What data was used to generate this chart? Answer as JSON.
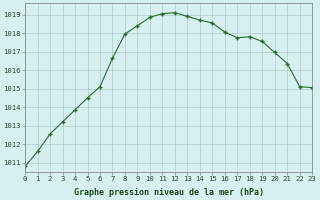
{
  "x": [
    0,
    1,
    2,
    3,
    4,
    5,
    6,
    7,
    8,
    9,
    10,
    11,
    12,
    13,
    14,
    15,
    16,
    17,
    18,
    19,
    20,
    21,
    22,
    23
  ],
  "y": [
    1010.8,
    1011.6,
    1012.55,
    1013.2,
    1013.85,
    1014.5,
    1015.1,
    1016.65,
    1017.95,
    1018.4,
    1018.85,
    1019.05,
    1019.1,
    1018.9,
    1018.7,
    1018.55,
    1018.05,
    1017.75,
    1017.8,
    1017.55,
    1016.95,
    1016.35,
    1015.1,
    1015.05
  ],
  "line_color": "#2d6a2d",
  "marker": "+",
  "bg_color": "#d6f0f0",
  "grid_color": "#b0c8c8",
  "xlabel": "Graphe pression niveau de la mer (hPa)",
  "xlabel_color": "#1a4a1a",
  "yticks": [
    1011,
    1012,
    1013,
    1014,
    1015,
    1016,
    1017,
    1018,
    1019
  ],
  "xticks": [
    0,
    1,
    2,
    3,
    4,
    5,
    6,
    7,
    8,
    9,
    10,
    11,
    12,
    13,
    14,
    15,
    16,
    17,
    18,
    19,
    20,
    21,
    22,
    23
  ],
  "xlim": [
    0,
    23
  ],
  "ylim": [
    1010.5,
    1019.6
  ],
  "tick_color": "#2d4a2d",
  "spine_color": "#888888",
  "tick_fontsize": 5.2,
  "xlabel_fontsize": 6.0
}
